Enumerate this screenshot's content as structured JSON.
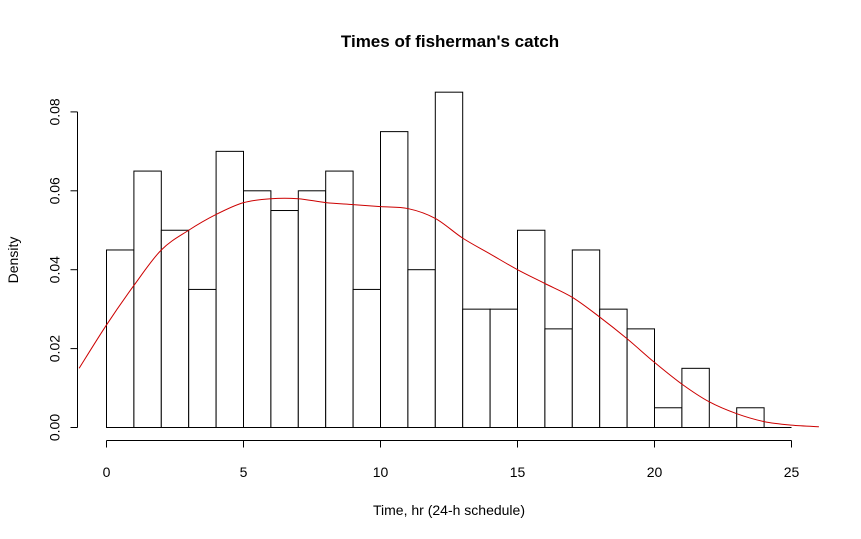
{
  "chart_data": {
    "type": "bar",
    "title": "Times of fisherman's catch",
    "xlabel": "Time, hr (24-h schedule)",
    "ylabel": "Density",
    "xlim": [
      0,
      26
    ],
    "ylim": [
      0,
      0.085
    ],
    "x_ticks": [
      0,
      5,
      10,
      15,
      20,
      25
    ],
    "y_ticks": [
      0.0,
      0.02,
      0.04,
      0.06,
      0.08
    ],
    "x_tick_labels": [
      "0",
      "5",
      "10",
      "15",
      "20",
      "25"
    ],
    "y_tick_labels": [
      "0.00",
      "0.02",
      "0.04",
      "0.06",
      "0.08"
    ],
    "grid": false,
    "bins": {
      "edges": [
        0,
        1,
        2,
        3,
        4,
        5,
        6,
        7,
        8,
        9,
        10,
        11,
        12,
        13,
        14,
        15,
        16,
        17,
        18,
        19,
        20,
        21,
        22,
        23,
        24,
        25
      ],
      "values": [
        0.045,
        0.065,
        0.05,
        0.035,
        0.07,
        0.06,
        0.055,
        0.06,
        0.065,
        0.035,
        0.075,
        0.04,
        0.085,
        0.03,
        0.03,
        0.05,
        0.025,
        0.045,
        0.03,
        0.025,
        0.005,
        0.015,
        0,
        0.005,
        0
      ]
    },
    "density_curve": {
      "color": "#cc0000",
      "x": [
        -1,
        0,
        1,
        2,
        3,
        4,
        5,
        6,
        7,
        8,
        9,
        10,
        11,
        12,
        13,
        14,
        15,
        16,
        17,
        18,
        19,
        20,
        21,
        22,
        23,
        24,
        25,
        26
      ],
      "y": [
        0.015,
        0.026,
        0.036,
        0.045,
        0.05,
        0.054,
        0.057,
        0.058,
        0.058,
        0.057,
        0.0565,
        0.056,
        0.0555,
        0.053,
        0.048,
        0.044,
        0.04,
        0.0365,
        0.033,
        0.028,
        0.0225,
        0.0165,
        0.011,
        0.0065,
        0.0035,
        0.0015,
        0.0006,
        0.0002
      ]
    },
    "bar_fill": "#ffffff",
    "bar_stroke": "#000000"
  }
}
